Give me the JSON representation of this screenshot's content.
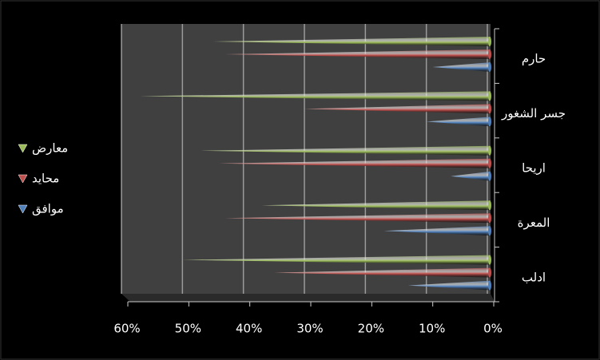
{
  "chart_data": {
    "type": "bar",
    "orientation": "horizontal",
    "x_reversed": true,
    "categories": [
      "حارم",
      "جسر الشغور",
      "اريحا",
      "المعرة",
      "ادلب"
    ],
    "series": [
      {
        "name": "معارض",
        "color": "#9bbb59",
        "values": [
          45,
          57,
          47,
          37,
          50
        ]
      },
      {
        "name": "محايد",
        "color": "#c0504d",
        "values": [
          43,
          30,
          44,
          43,
          35
        ]
      },
      {
        "name": "موافق",
        "color": "#4f81bd",
        "values": [
          9,
          10,
          6,
          17,
          13
        ]
      }
    ],
    "xlim": [
      0,
      60
    ],
    "xticks": [
      {
        "value": 60,
        "label": "60%"
      },
      {
        "value": 50,
        "label": "50%"
      },
      {
        "value": 40,
        "label": "40%"
      },
      {
        "value": 30,
        "label": "30%"
      },
      {
        "value": 20,
        "label": "20%"
      },
      {
        "value": 10,
        "label": "10%"
      },
      {
        "value": 0,
        "label": "0%"
      }
    ],
    "grid": true,
    "legend": "left"
  }
}
